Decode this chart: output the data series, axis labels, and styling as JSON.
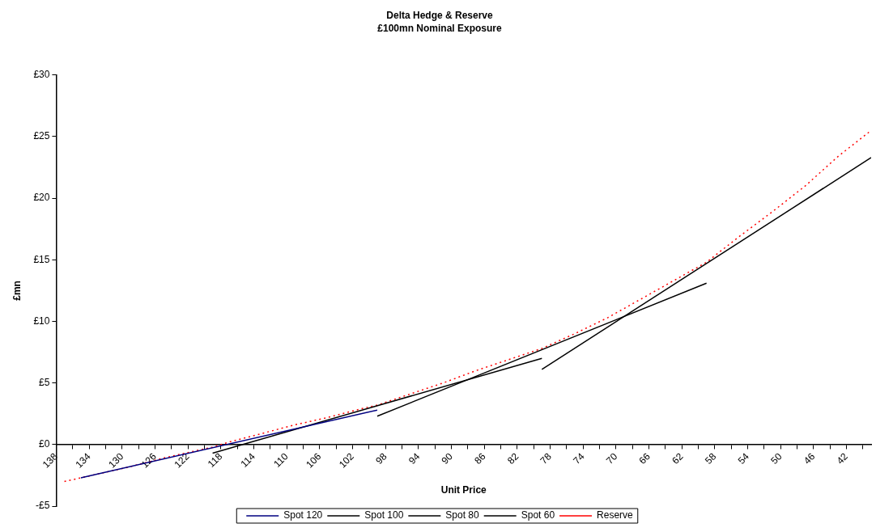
{
  "chart_data": {
    "type": "line",
    "title": "Delta Hedge & Reserve",
    "subtitle": "£100mn Nominal Exposure",
    "xlabel": "Unit Price",
    "ylabel": "£mn",
    "xlim": [
      138,
      39
    ],
    "xticks": [
      138,
      {
        "value": 136,
        "label": null
      },
      134,
      {
        "value": 132,
        "label": null
      },
      130,
      {
        "value": 128,
        "label": null
      },
      126,
      {
        "value": 124,
        "label": null
      },
      122,
      {
        "value": 120,
        "label": null
      },
      118,
      {
        "value": 116,
        "label": null
      },
      114,
      {
        "value": 112,
        "label": null
      },
      110,
      {
        "value": 108,
        "label": null
      },
      106,
      {
        "value": 104,
        "label": null
      },
      102,
      {
        "value": 100,
        "label": null
      },
      98,
      {
        "value": 96,
        "label": null
      },
      94,
      {
        "value": 92,
        "label": null
      },
      90,
      {
        "value": 88,
        "label": null
      },
      86,
      {
        "value": 84,
        "label": null
      },
      82,
      {
        "value": 80,
        "label": null
      },
      78,
      {
        "value": 76,
        "label": null
      },
      74,
      {
        "value": 72,
        "label": null
      },
      70,
      {
        "value": 68,
        "label": null
      },
      66,
      {
        "value": 64,
        "label": null
      },
      62,
      {
        "value": 60,
        "label": null
      },
      58,
      {
        "value": 56,
        "label": null
      },
      54,
      {
        "value": 52,
        "label": null
      },
      50,
      {
        "value": 48,
        "label": null
      },
      46,
      {
        "value": 44,
        "label": null
      },
      42,
      {
        "value": 40,
        "label": null
      }
    ],
    "ylim": [
      -5,
      30
    ],
    "yticks": [
      {
        "value": -5,
        "label": "-£5"
      },
      {
        "value": 0,
        "label": "£0"
      },
      {
        "value": 5,
        "label": "£5"
      },
      {
        "value": 10,
        "label": "£10"
      },
      {
        "value": 15,
        "label": "£15"
      },
      {
        "value": 20,
        "label": "£20"
      },
      {
        "value": 25,
        "label": "£25"
      },
      {
        "value": 30,
        "label": "£30"
      }
    ],
    "grid": false,
    "legend": "bottom",
    "marker": "none",
    "series": [
      {
        "name": "Spot 120",
        "color": "#000080",
        "line_style": "solid",
        "x": [
          135,
          99
        ],
        "values": [
          -2.7,
          2.8
        ]
      },
      {
        "name": "Spot 100",
        "color": "#000000",
        "line_style": "solid",
        "x": [
          119,
          79
        ],
        "values": [
          -0.7,
          7.0
        ]
      },
      {
        "name": "Spot 80",
        "color": "#000000",
        "line_style": "solid",
        "x": [
          99,
          59
        ],
        "values": [
          2.3,
          13.1
        ]
      },
      {
        "name": "Spot 60",
        "color": "#000000",
        "line_style": "solid",
        "x": [
          79,
          39
        ],
        "values": [
          6.1,
          23.3
        ]
      },
      {
        "name": "Reserve",
        "color": "#ff0000",
        "line_style": "dotted",
        "x": [
          137,
          133,
          129,
          125,
          121,
          119,
          117,
          113,
          109,
          105,
          101,
          99,
          95,
          91,
          87,
          83,
          79,
          75,
          71,
          67,
          63,
          59,
          55,
          51,
          47,
          43,
          39
        ],
        "values": [
          -3.0,
          -2.4,
          -1.8,
          -1.1,
          -0.5,
          -0.2,
          0.2,
          0.9,
          1.6,
          2.2,
          2.9,
          3.2,
          4.1,
          5.0,
          6.0,
          6.9,
          7.8,
          9.0,
          10.3,
          11.8,
          13.3,
          14.8,
          16.9,
          18.9,
          21.0,
          23.4,
          25.5
        ]
      }
    ]
  }
}
